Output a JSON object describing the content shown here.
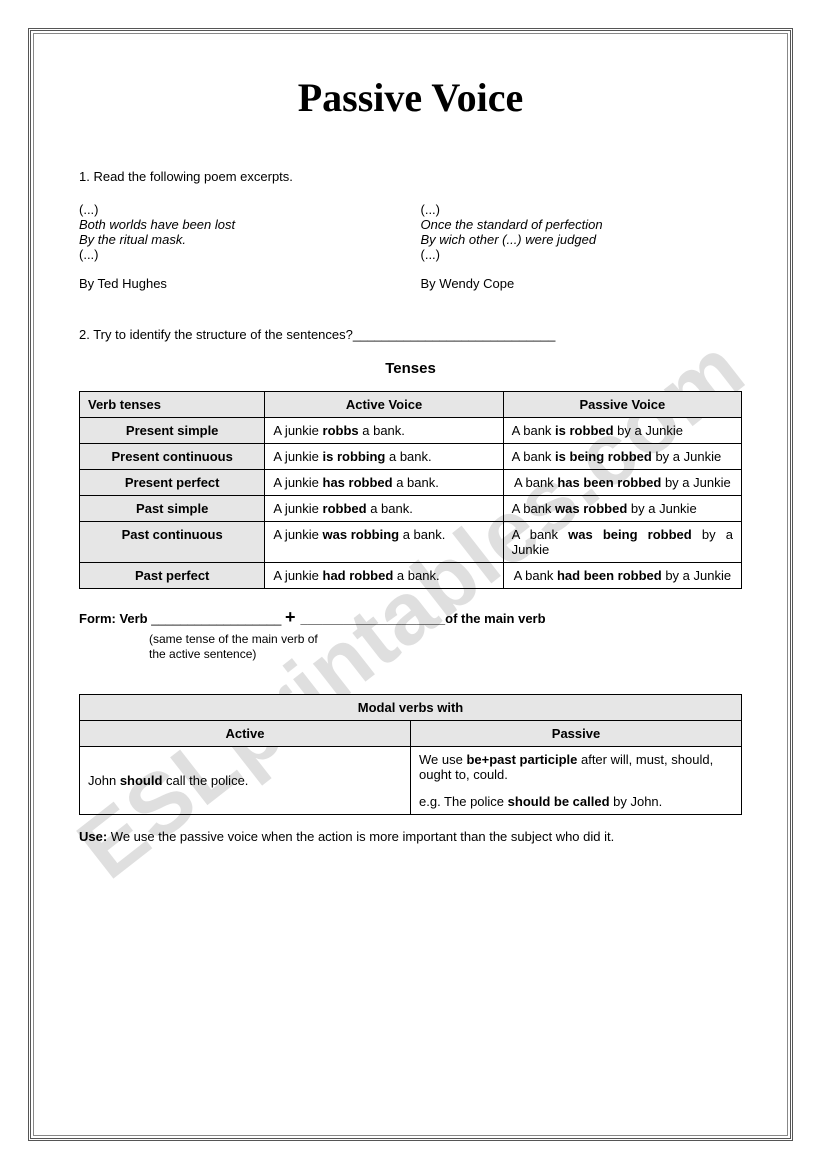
{
  "watermark": "ESLprintables.com",
  "title": "Passive Voice",
  "q1_label": "1. Read the following poem excerpts.",
  "poem_left": {
    "dots1": "(...)",
    "line1": "Both worlds have been lost",
    "line2": "By the ritual mask.",
    "dots2": "(...)",
    "author": "By Ted Hughes"
  },
  "poem_right": {
    "dots1": "(...)",
    "line1": "Once the standard of perfection",
    "line2": "By wich other (...) were judged",
    "dots2": "(...)",
    "author": "By Wendy Cope"
  },
  "q2_label": "2. Try to identify the structure of the sentences?____________________________",
  "tenses_heading": "Tenses",
  "tenses_table": {
    "headers": [
      "Verb tenses",
      "Active Voice",
      "Passive Voice"
    ],
    "rows": [
      {
        "tense": "Present simple",
        "active_pre": "A junkie ",
        "active_bold": "robbs",
        "active_post": " a bank.",
        "passive_pre": "A bank ",
        "passive_bold": "is robbed",
        "passive_post": " by a Junkie"
      },
      {
        "tense": "Present continuous",
        "active_pre": "A junkie ",
        "active_bold": "is robbing",
        "active_post": " a bank.",
        "passive_pre": "A bank ",
        "passive_bold": "is being robbed",
        "passive_post": " by a Junkie"
      },
      {
        "tense": "Present perfect",
        "active_pre": "A junkie ",
        "active_bold": "has robbed",
        "active_post": " a bank.",
        "passive_pre": "A bank ",
        "passive_bold": "has been robbed",
        "passive_post": " by a Junkie"
      },
      {
        "tense": "Past simple",
        "active_pre": "A junkie ",
        "active_bold": "robbed",
        "active_post": " a bank.",
        "passive_pre": "A bank ",
        "passive_bold": "was robbed",
        "passive_post": " by a Junkie"
      },
      {
        "tense": "Past continuous",
        "active_pre": "A junkie ",
        "active_bold": "was robbing",
        "active_post": "  a bank.",
        "passive_pre": "A bank ",
        "passive_bold": "was being robbed",
        "passive_post": " by a Junkie"
      },
      {
        "tense": "Past perfect",
        "active_pre": "A junkie ",
        "active_bold": "had robbed",
        "active_post": " a bank.",
        "passive_pre": "A bank ",
        "passive_bold": "had been robbed",
        "passive_post": " by a Junkie"
      }
    ]
  },
  "form": {
    "label": "Form: Verb ",
    "blank1": "__________________",
    "plus": "  +  ",
    "blank2": "____________________",
    "tail": "of the  main verb",
    "note_line1": "(same tense of the main verb of",
    "note_line2": "the active sentence)"
  },
  "modal_table": {
    "title": "Modal verbs with",
    "col_active": "Active",
    "col_passive": "Passive",
    "active_pre": "John ",
    "active_bold": "should",
    "active_post": " call the police.",
    "passive_line1_pre": "We use ",
    "passive_line1_bold": "be+past participle",
    "passive_line1_post": " after will, must, should, ought to, could.",
    "passive_eg_pre": "e.g. The police ",
    "passive_eg_bold": "should be called",
    "passive_eg_post": " by John."
  },
  "use": {
    "label": "Use:",
    "text": " We use the passive voice when the action is more important than the subject who did it."
  }
}
